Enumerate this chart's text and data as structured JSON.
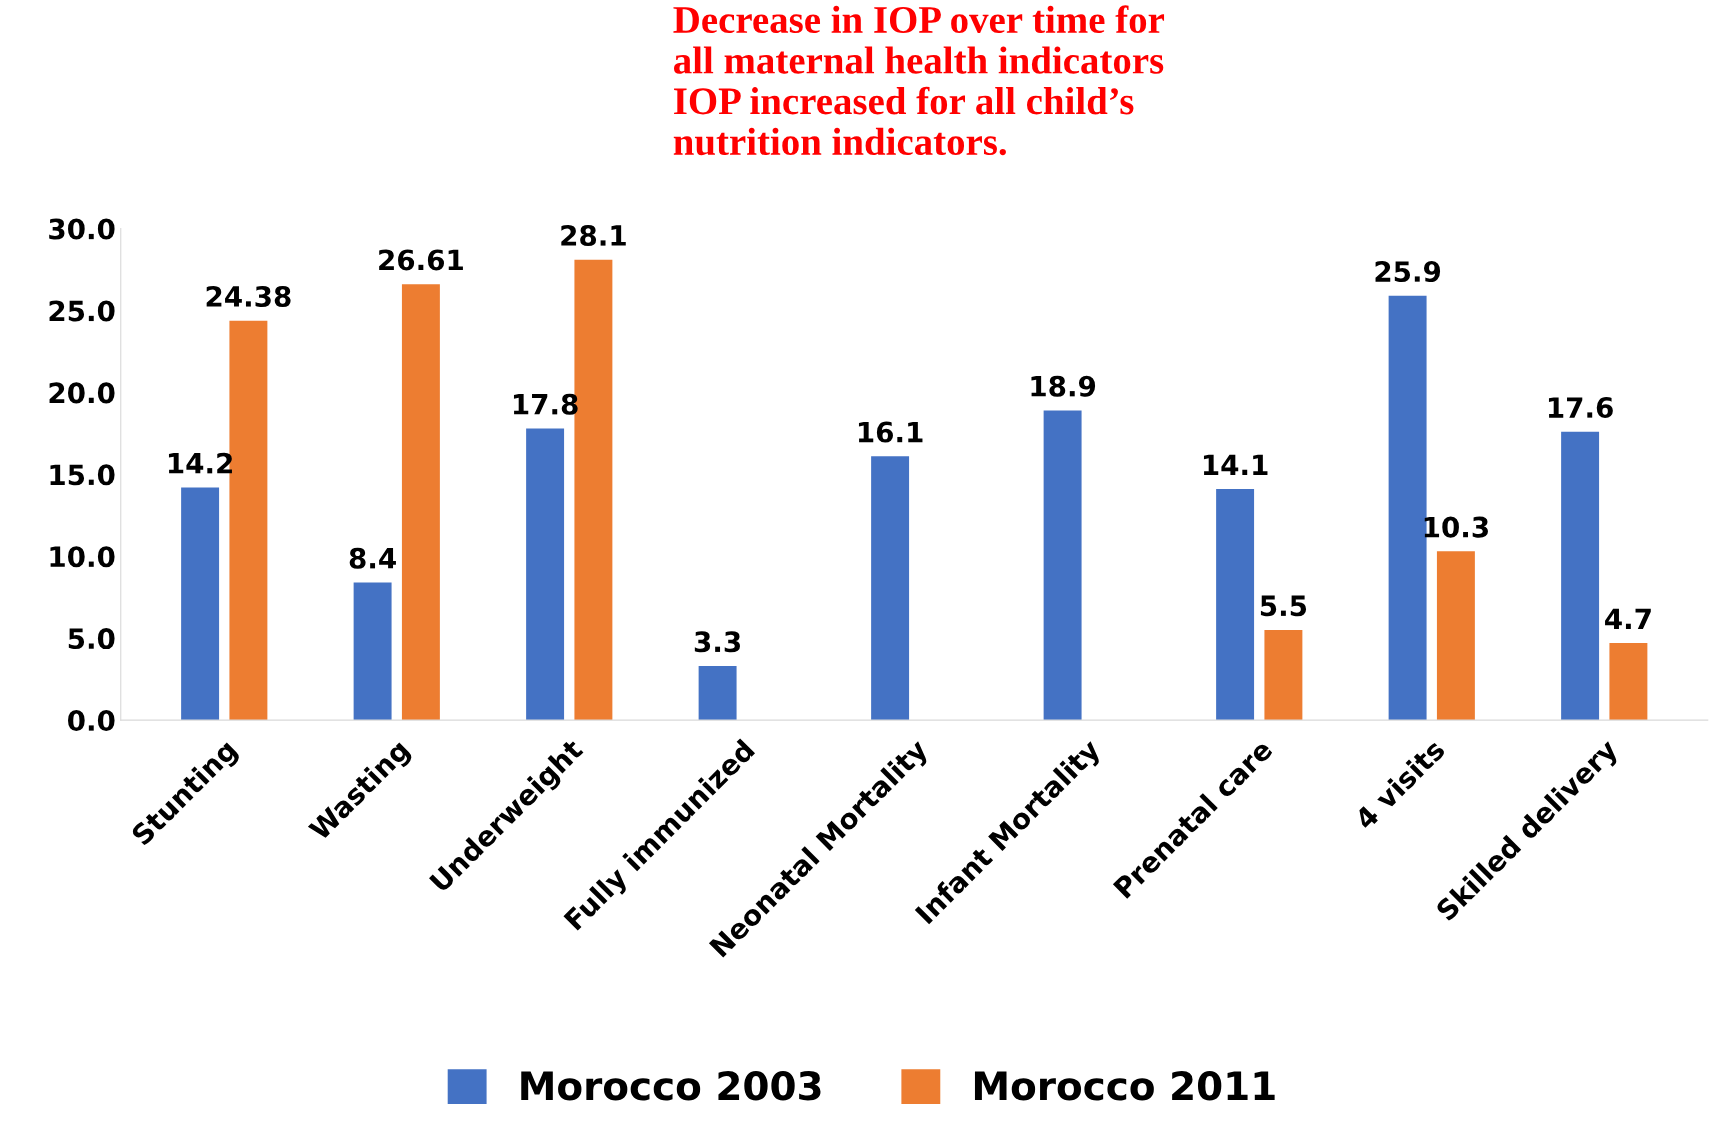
{
  "chart_data": {
    "type": "bar",
    "categories": [
      "Stunting",
      "Wasting",
      "Underweight",
      "Fully immunized",
      "Neonatal Mortality",
      "Infant Mortality",
      "Prenatal care",
      "4 visits",
      "Skilled delivery"
    ],
    "series": [
      {
        "name": "Morocco 2003",
        "color": "#4472c4",
        "values": [
          14.2,
          8.4,
          17.8,
          3.3,
          16.1,
          18.9,
          14.1,
          25.9,
          17.6
        ]
      },
      {
        "name": "Morocco 2011",
        "color": "#ed7d31",
        "values": [
          24.38,
          26.61,
          28.1,
          null,
          null,
          null,
          5.5,
          10.3,
          4.7
        ]
      }
    ],
    "ylim": [
      0,
      30
    ],
    "yticks": [
      {
        "value": 0,
        "label": "0.0"
      },
      {
        "value": 5,
        "label": "5.0"
      },
      {
        "value": 10,
        "label": "10.0"
      },
      {
        "value": 15,
        "label": "15.0"
      },
      {
        "value": 20,
        "label": "20.0"
      },
      {
        "value": 25,
        "label": "25.0"
      },
      {
        "value": 30,
        "label": "30.0"
      }
    ],
    "annotations": [
      "Decrease in IOP over time for\nall maternal health indicators\nIOP increased for all child’s\nnutrition indicators."
    ],
    "data_labels": true,
    "grid": false,
    "legend": "bottom"
  }
}
